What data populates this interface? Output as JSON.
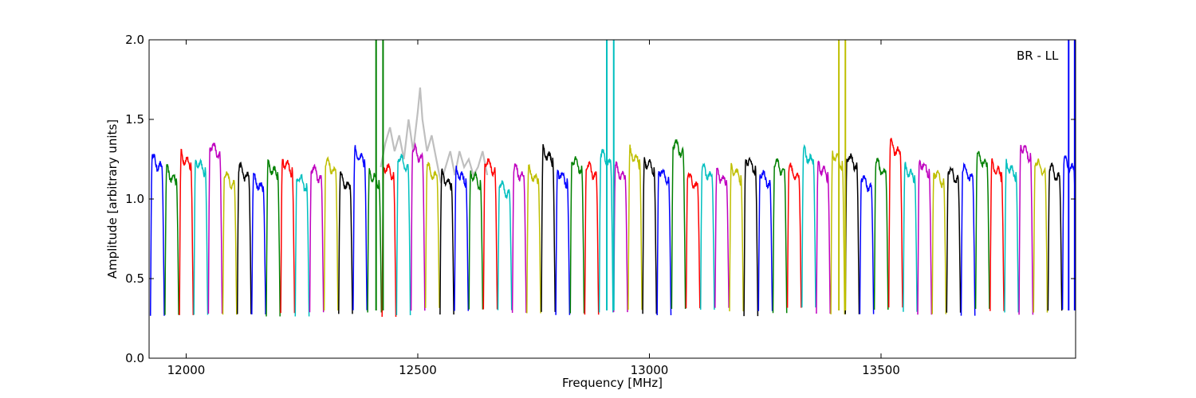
{
  "chart_data": {
    "type": "line",
    "title": "",
    "xlabel": "Frequency [MHz]",
    "ylabel": "Amplitude [arbitrary units]",
    "xlim": [
      11920,
      13920
    ],
    "ylim": [
      0,
      2.0
    ],
    "xticks": [
      12000,
      12500,
      13000,
      13500
    ],
    "yticks": [
      0.0,
      0.5,
      1.0,
      1.5,
      2.0
    ],
    "ytick_labels": [
      "0.0",
      "0.5",
      "1.0",
      "1.5",
      "2.0"
    ],
    "annotation": "BR - LL",
    "grid": false,
    "colors": [
      "#0000ff",
      "#008000",
      "#ff0000",
      "#00bfbf",
      "#bf00bf",
      "#bfbf00",
      "#000000"
    ],
    "background_color": "#bfbfbf",
    "channel": {
      "start": 11923,
      "width": 31.25,
      "count": 64,
      "edge_low": 0.28,
      "peak": 1.2,
      "variation": [
        0.06,
        -0.02,
        0.08,
        0.05,
        0.15,
        -0.04,
        0.0,
        -0.07,
        0.02,
        0.05,
        -0.05,
        0.0,
        0.04,
        -0.06,
        0.1,
        -0.03,
        0.02,
        0.07,
        0.12,
        0.0,
        -0.05,
        -0.02,
        -0.03,
        0.05,
        -0.1,
        0.0,
        -0.02,
        0.11,
        -0.02,
        0.06,
        0.02,
        0.09,
        0.0,
        0.1,
        0.05,
        -0.01,
        0.16,
        -0.05,
        0.0,
        -0.03,
        0.0,
        0.06,
        -0.03,
        0.04,
        0.0,
        0.1,
        0.02,
        0.09,
        0.08,
        -0.06,
        0.03,
        0.15,
        0.0,
        0.04,
        -0.02,
        -0.01,
        0.0,
        0.08,
        0.02,
        0.02,
        0.14,
        0.04,
        0.0,
        0.05
      ]
    },
    "spikes": [
      {
        "x": 12410,
        "series": "green",
        "ymin": 0.3,
        "ymax": 2.0
      },
      {
        "x": 12425,
        "series": "green",
        "ymin": 0.3,
        "ymax": 2.0
      },
      {
        "x": 12908,
        "series": "cyan",
        "ymin": 0.3,
        "ymax": 2.0
      },
      {
        "x": 12923,
        "series": "cyan",
        "ymin": 0.3,
        "ymax": 2.0
      },
      {
        "x": 13409,
        "series": "olive",
        "ymin": 0.3,
        "ymax": 2.0
      },
      {
        "x": 13423,
        "series": "olive",
        "ymin": 0.3,
        "ymax": 2.0
      },
      {
        "x": 13905,
        "series": "blue",
        "ymin": 0.3,
        "ymax": 2.0
      },
      {
        "x": 13918,
        "series": "blue",
        "ymin": 0.3,
        "ymax": 2.0
      }
    ],
    "background_trace": {
      "x": [
        12420,
        12430,
        12440,
        12450,
        12460,
        12470,
        12480,
        12490,
        12500,
        12505,
        12510,
        12520,
        12530,
        12540,
        12550,
        12560,
        12570,
        12580,
        12590,
        12600,
        12610,
        12620,
        12630,
        12640,
        12650
      ],
      "y": [
        1.2,
        1.35,
        1.45,
        1.3,
        1.4,
        1.25,
        1.5,
        1.3,
        1.55,
        1.7,
        1.5,
        1.3,
        1.4,
        1.25,
        1.1,
        1.2,
        1.3,
        1.15,
        1.3,
        1.2,
        1.25,
        1.15,
        1.2,
        1.3,
        1.15
      ]
    }
  }
}
